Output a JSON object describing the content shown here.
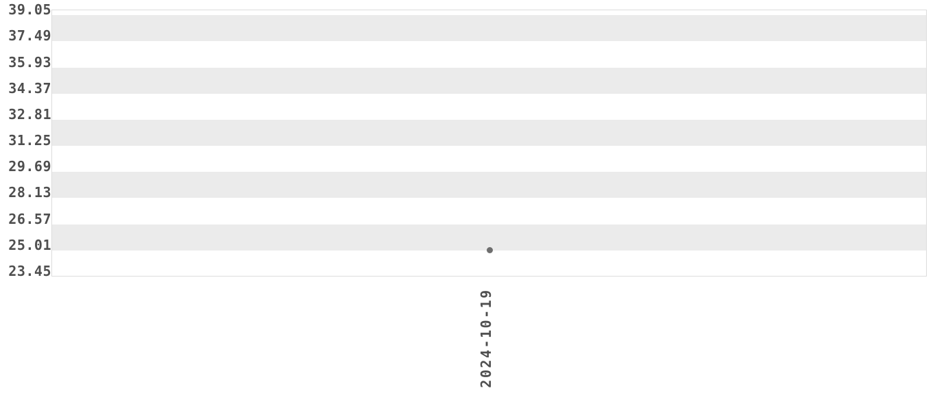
{
  "chart": {
    "background_color": "#ffffff",
    "band_color": "#ebebeb",
    "border_color": "#dcdcdc",
    "tick_label_color": "#4f4f4f",
    "point_color": "#6e6e6e"
  },
  "chart_data": {
    "type": "scatter",
    "title": "",
    "xlabel": "",
    "ylabel": "",
    "x": [
      "2024-10-19"
    ],
    "series": [
      {
        "name": "value",
        "values": [
          25.03
        ]
      }
    ],
    "y_ticks": [
      39.05,
      37.49,
      35.93,
      34.37,
      32.81,
      31.25,
      29.69,
      28.13,
      26.57,
      25.01,
      23.45
    ],
    "y_tick_step": 1.56,
    "ylim": [
      23.45,
      39.35
    ],
    "grid": "alternating-horizontal-bands",
    "legend": false
  }
}
